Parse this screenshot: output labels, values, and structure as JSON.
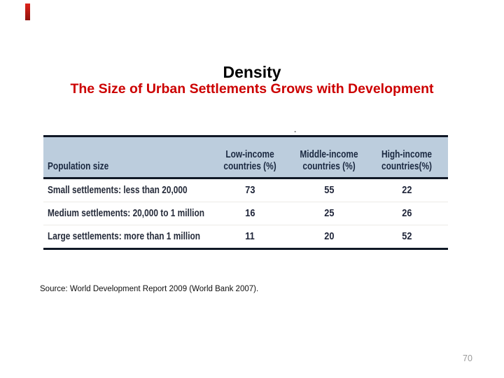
{
  "slide": {
    "title": "Density",
    "subtitle": "The Size of Urban Settlements Grows with Development",
    "source_note": "Source: World Development Report 2009 (World Bank 2007).",
    "page_number": "70",
    "accent_red": "#cc0000",
    "corner_mark_colors": {
      "top": "#de231a",
      "bottom": "#8f130d"
    },
    "stray_mark": "."
  },
  "table": {
    "header_bg": "#bccddd",
    "border_color": "#101826",
    "columns": [
      "Population size",
      "Low-income countries (%)",
      "Middle-income countries (%)",
      "High-income countries(%)"
    ],
    "rows": [
      {
        "label": "Small settlements: less than 20,000",
        "low": "73",
        "middle": "55",
        "high": "22"
      },
      {
        "label": "Medium settlements: 20,000 to 1 million",
        "low": "16",
        "middle": "25",
        "high": "26"
      },
      {
        "label": "Large settlements: more than 1 million",
        "low": "11",
        "middle": "20",
        "high": "52"
      }
    ]
  },
  "chart_data": {
    "type": "table",
    "title": "The Size of Urban Settlements Grows with Development",
    "categories": [
      "Small settlements: less than 20,000",
      "Medium settlements: 20,000 to 1 million",
      "Large settlements: more than 1 million"
    ],
    "series": [
      {
        "name": "Low-income countries (%)",
        "values": [
          73,
          16,
          11
        ]
      },
      {
        "name": "Middle-income countries (%)",
        "values": [
          55,
          25,
          20
        ]
      },
      {
        "name": "High-income countries(%)",
        "values": [
          22,
          26,
          52
        ]
      }
    ]
  }
}
